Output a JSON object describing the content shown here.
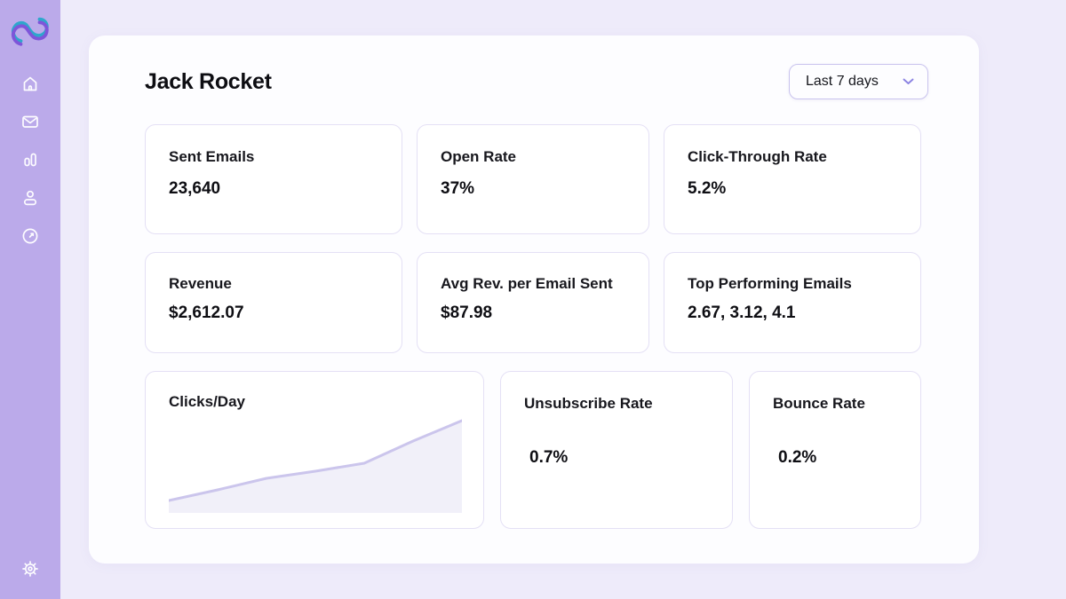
{
  "colors": {
    "page-bg": "#eeebfa",
    "sidebar-bg": "#bbaaea",
    "panel-bg": "#fdfdff",
    "card-border": "#e4e0f5",
    "select-border": "#c9c3ee",
    "chevron": "#8b83e2",
    "logo-teal": "#2ea7cc",
    "logo-purple": "#7e55d9"
  },
  "sidebar": {
    "icons": [
      "brand-logo",
      "home-icon",
      "mail-icon",
      "bar-chart-icon",
      "user-icon",
      "clock-arrow-icon",
      "gear-icon"
    ]
  },
  "header": {
    "title": "Jack Rocket",
    "range_selector": {
      "value": "Last 7 days",
      "icon": "chevron-down-icon"
    }
  },
  "stats": [
    {
      "label": "Sent Emails",
      "value": "23,640"
    },
    {
      "label": "Open Rate",
      "value": "37%"
    },
    {
      "label": "Click-Through Rate",
      "value": "5.2%"
    },
    {
      "label": "Revenue",
      "value": "$2,612.07"
    },
    {
      "label": "Avg Rev. per Email Sent",
      "value": "$87.98"
    },
    {
      "label": "Top Performing Emails",
      "value": "2.67, 3.12, 4.1"
    },
    {
      "label": "Clicks/Day",
      "value": ""
    },
    {
      "label": "Unsubscribe Rate",
      "value": "0.7%"
    },
    {
      "label": "Bounce Rate",
      "value": "0.2%"
    }
  ],
  "chart_data": {
    "type": "area",
    "title": "Clicks/Day",
    "xlabel": "",
    "ylabel": "",
    "axes_visible": false,
    "grid": false,
    "legend": false,
    "x_relative_day_index": [
      0,
      1,
      2,
      3,
      4,
      5,
      6
    ],
    "values_relative_pct": [
      8,
      20,
      33,
      41,
      50,
      75,
      98
    ],
    "note": "no axis labels shown; values estimated relative 0-100 of plot height, steady rise with steeper climb after day 4",
    "line_color": "#cbc5ec",
    "fill_color": "#f1f0f9"
  }
}
